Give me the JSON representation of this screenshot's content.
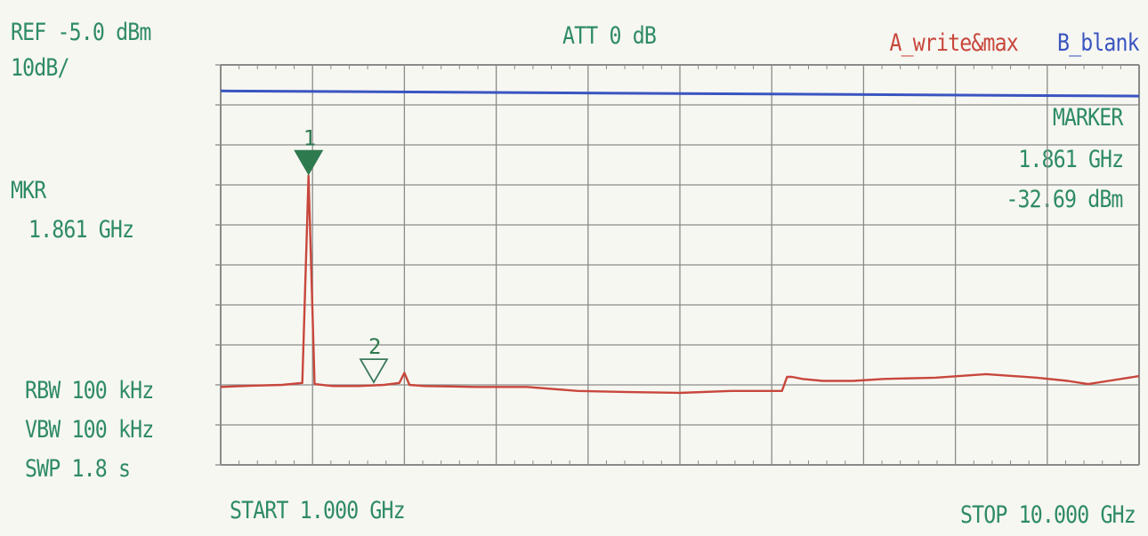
{
  "header": {
    "ref_level": "REF -5.0 dBm",
    "scale": "10dB/",
    "attenuation": "ATT 0 dB",
    "trace_a": "A_write&max",
    "trace_b": "B_blank"
  },
  "left_panel": {
    "mkr_label": "MKR",
    "mkr_freq": "1.861 GHz",
    "rbw": "RBW 100 kHz",
    "vbw": "VBW 100 kHz",
    "sweep": "SWP 1.8 s"
  },
  "marker_box": {
    "title": "MARKER",
    "freq": "1.861 GHz",
    "level": "-32.69 dBm"
  },
  "footer": {
    "start": "START 1.000 GHz",
    "stop": "STOP 10.000 GHz"
  },
  "colors": {
    "text": "#2e8b63",
    "grid": "#8a8a8a",
    "trace_a": "#c8473c",
    "trace_b": "#3a55c0",
    "marker": "#2e7a4f"
  },
  "chart_data": {
    "type": "line",
    "x_unit": "GHz",
    "y_unit": "dBm",
    "xlim": [
      1.0,
      10.0
    ],
    "ylim": [
      -105,
      -5
    ],
    "y_per_div": 10,
    "grid": true,
    "series": [
      {
        "name": "A_write&max",
        "color": "#c8473c",
        "x": [
          1.0,
          1.3,
          1.6,
          1.8,
          1.861,
          1.92,
          2.1,
          2.35,
          2.6,
          2.75,
          2.8,
          2.85,
          3.0,
          3.5,
          4.0,
          4.5,
          5.0,
          5.5,
          6.0,
          6.5,
          6.55,
          6.6,
          6.7,
          6.9,
          7.2,
          7.5,
          8.0,
          8.5,
          9.0,
          9.3,
          9.5,
          9.7,
          10.0
        ],
        "y": [
          -85.5,
          -85.2,
          -85.0,
          -84.5,
          -32.69,
          -84.8,
          -85.3,
          -85.3,
          -85.0,
          -84.5,
          -82.0,
          -85.0,
          -85.3,
          -85.5,
          -85.5,
          -86.5,
          -86.8,
          -87.0,
          -86.5,
          -86.5,
          -83.0,
          -83.0,
          -83.5,
          -84.0,
          -84.0,
          -83.5,
          -83.2,
          -82.3,
          -83.2,
          -84.0,
          -84.8,
          -84.0,
          -82.8
        ]
      },
      {
        "name": "B_blank",
        "color": "#3a55c0",
        "x": [
          1.0,
          10.0
        ],
        "y": [
          -11.5,
          -12.8
        ]
      }
    ],
    "markers": [
      {
        "id": "1",
        "x": 1.861,
        "y": -32.69,
        "filled": true
      },
      {
        "id": "2",
        "x": 2.5,
        "y": -84.8,
        "filled": false
      }
    ]
  }
}
